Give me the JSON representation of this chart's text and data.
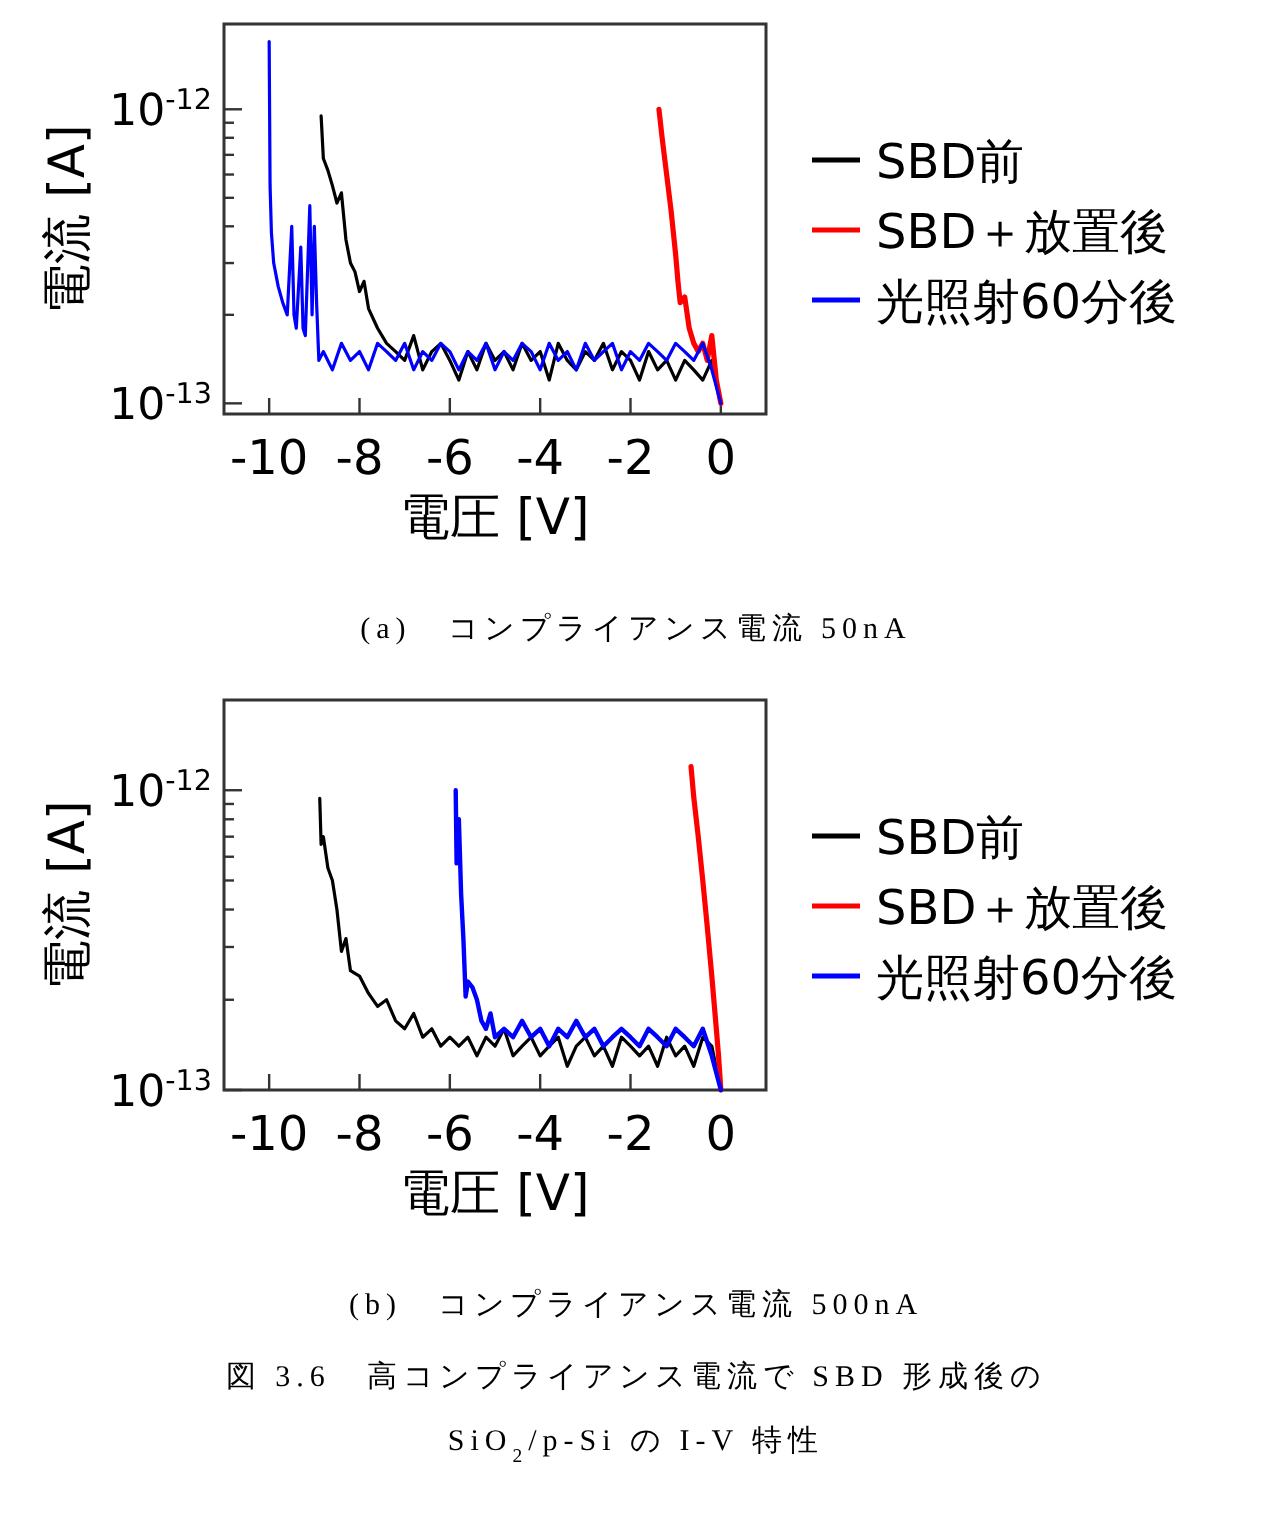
{
  "chart_data": [
    {
      "type": "line",
      "title": "(a)　コンプライアンス電流 50nA",
      "xlabel": "電圧 [V]",
      "ylabel": "電流 [A]",
      "log": "y",
      "legend": "right",
      "grid": false,
      "xlim": [
        -11,
        1
      ],
      "xticks": [
        {
          "value": -10,
          "label": "-10"
        },
        {
          "value": -8,
          "label": "-8"
        },
        {
          "value": -6,
          "label": "-6"
        },
        {
          "value": -4,
          "label": "-4"
        },
        {
          "value": -2,
          "label": "-2"
        },
        0
      ],
      "ylim": [
        9.2e-14,
        1.95e-12
      ],
      "yticks": [
        {
          "value": 1e-13,
          "label": "10$^{-13}$"
        },
        {
          "value": 2e-13,
          "label": null
        },
        {
          "value": 3e-13,
          "label": null
        },
        {
          "value": 4e-13,
          "label": null
        },
        {
          "value": 5e-13,
          "label": null
        },
        {
          "value": 6e-13,
          "label": null
        },
        {
          "value": 7e-13,
          "label": null
        },
        {
          "value": 8e-13,
          "label": null
        },
        {
          "value": 9e-13,
          "label": null
        },
        {
          "value": 1e-12,
          "label": "10$^{-12}$"
        }
      ],
      "series": [
        {
          "name": "SBD前",
          "color": "#000000",
          "x": [
            -8.85,
            -8.8,
            -8.7,
            -8.6,
            -8.5,
            -8.4,
            -8.3,
            -8.2,
            -8.1,
            -8.0,
            -7.9,
            -7.8,
            -7.6,
            -7.4,
            -7.2,
            -7.0,
            -6.8,
            -6.6,
            -6.4,
            -6.2,
            -6.0,
            -5.8,
            -5.6,
            -5.4,
            -5.2,
            -5.0,
            -4.8,
            -4.6,
            -4.4,
            -4.2,
            -4.0,
            -3.8,
            -3.6,
            -3.4,
            -3.2,
            -3.0,
            -2.8,
            -2.6,
            -2.4,
            -2.2,
            -2.0,
            -1.8,
            -1.6,
            -1.4,
            -1.2,
            -1.0,
            -0.8,
            -0.6,
            -0.4,
            -0.2,
            0
          ],
          "values": [
            9.5e-13,
            6.8e-13,
            6.2e-13,
            5.5e-13,
            4.8e-13,
            5.2e-13,
            3.6e-13,
            3e-13,
            2.8e-13,
            2.4e-13,
            2.6e-13,
            2.1e-13,
            1.8e-13,
            1.6e-13,
            1.5e-13,
            1.4e-13,
            1.7e-13,
            1.3e-13,
            1.5e-13,
            1.6e-13,
            1.4e-13,
            1.2e-13,
            1.5e-13,
            1.3e-13,
            1.6e-13,
            1.4e-13,
            1.5e-13,
            1.3e-13,
            1.6e-13,
            1.4e-13,
            1.5e-13,
            1.2e-13,
            1.6e-13,
            1.4e-13,
            1.3e-13,
            1.5e-13,
            1.4e-13,
            1.6e-13,
            1.3e-13,
            1.5e-13,
            1.4e-13,
            1.2e-13,
            1.5e-13,
            1.3e-13,
            1.4e-13,
            1.2e-13,
            1.4e-13,
            1.3e-13,
            1.2e-13,
            1.4e-13,
            1e-13
          ]
        },
        {
          "name": "SBD＋放置後",
          "color": "#ff0000",
          "x": [
            -1.37,
            -1.3,
            -1.2,
            -1.1,
            -1.0,
            -0.95,
            -0.9,
            -0.8,
            -0.7,
            -0.6,
            -0.5,
            -0.4,
            -0.3,
            -0.2,
            -0.1,
            0
          ],
          "values": [
            1e-12,
            8e-13,
            6e-13,
            4.5e-13,
            3.2e-13,
            2.6e-13,
            2.2e-13,
            2.3e-13,
            1.8e-13,
            1.6e-13,
            1.5e-13,
            1.6e-13,
            1.4e-13,
            1.7e-13,
            1.2e-13,
            1e-13
          ]
        },
        {
          "name": "光照射60分後",
          "color": "#0000ff",
          "x": [
            -10,
            -9.98,
            -9.95,
            -9.9,
            -9.8,
            -9.7,
            -9.6,
            -9.5,
            -9.45,
            -9.4,
            -9.3,
            -9.25,
            -9.2,
            -9.1,
            -9.05,
            -9.0,
            -8.95,
            -8.9,
            -8.8,
            -8.6,
            -8.4,
            -8.2,
            -8.0,
            -7.8,
            -7.6,
            -7.4,
            -7.2,
            -7.0,
            -6.8,
            -6.6,
            -6.4,
            -6.2,
            -6.0,
            -5.8,
            -5.6,
            -5.4,
            -5.2,
            -5.0,
            -4.8,
            -4.6,
            -4.4,
            -4.2,
            -4.0,
            -3.8,
            -3.6,
            -3.4,
            -3.2,
            -3.0,
            -2.8,
            -2.6,
            -2.4,
            -2.2,
            -2.0,
            -1.8,
            -1.6,
            -1.4,
            -1.2,
            -1.0,
            -0.8,
            -0.6,
            -0.4,
            -0.2,
            0
          ],
          "values": [
            1.7e-12,
            5.5e-13,
            3.8e-13,
            3e-13,
            2.5e-13,
            2.2e-13,
            2e-13,
            4e-13,
            2e-13,
            1.8e-13,
            3.4e-13,
            1.8e-13,
            1.7e-13,
            4.7e-13,
            2e-13,
            4e-13,
            2.2e-13,
            1.4e-13,
            1.5e-13,
            1.3e-13,
            1.6e-13,
            1.4e-13,
            1.5e-13,
            1.3e-13,
            1.6e-13,
            1.5e-13,
            1.4e-13,
            1.6e-13,
            1.3e-13,
            1.5e-13,
            1.4e-13,
            1.6e-13,
            1.5e-13,
            1.3e-13,
            1.5e-13,
            1.4e-13,
            1.6e-13,
            1.3e-13,
            1.5e-13,
            1.4e-13,
            1.6e-13,
            1.5e-13,
            1.3e-13,
            1.6e-13,
            1.4e-13,
            1.5e-13,
            1.3e-13,
            1.6e-13,
            1.4e-13,
            1.5e-13,
            1.6e-13,
            1.3e-13,
            1.5e-13,
            1.4e-13,
            1.6e-13,
            1.5e-13,
            1.4e-13,
            1.6e-13,
            1.5e-13,
            1.4e-13,
            1.6e-13,
            1.3e-13,
            1e-13
          ]
        }
      ]
    },
    {
      "type": "line",
      "title": "(b)　コンプライアンス電流 500nA",
      "xlabel": "電圧 [V]",
      "ylabel": "電流 [A]",
      "log": "y",
      "legend": "right",
      "grid": false,
      "annotations": [
        "図 3.6　高コンプライアンス電流で SBD 形成後の",
        "SiO$_{2}$/p-Si の I-V 特性"
      ],
      "xlim": [
        -11,
        1
      ],
      "xticks": [
        {
          "value": -10,
          "label": "-10"
        },
        {
          "value": -8,
          "label": "-8"
        },
        {
          "value": -6,
          "label": "-6"
        },
        {
          "value": -4,
          "label": "-4"
        },
        {
          "value": -2,
          "label": "-2"
        },
        0
      ],
      "ylim": [
        1e-13,
        2e-12
      ],
      "yticks": [
        {
          "value": 1e-13,
          "label": "10$^{-13}$"
        },
        {
          "value": 2e-13,
          "label": null
        },
        {
          "value": 3e-13,
          "label": null
        },
        {
          "value": 4e-13,
          "label": null
        },
        {
          "value": 5e-13,
          "label": null
        },
        {
          "value": 6e-13,
          "label": null
        },
        {
          "value": 7e-13,
          "label": null
        },
        {
          "value": 8e-13,
          "label": null
        },
        {
          "value": 9e-13,
          "label": null
        },
        {
          "value": 1e-12,
          "label": "10$^{-12}$"
        }
      ],
      "series": [
        {
          "name": "SBD前",
          "color": "#000000",
          "x": [
            -8.88,
            -8.85,
            -8.8,
            -8.7,
            -8.6,
            -8.5,
            -8.4,
            -8.3,
            -8.2,
            -8.0,
            -7.8,
            -7.6,
            -7.4,
            -7.2,
            -7.0,
            -6.8,
            -6.6,
            -6.4,
            -6.2,
            -6.0,
            -5.8,
            -5.6,
            -5.4,
            -5.2,
            -5.0,
            -4.8,
            -4.6,
            -4.4,
            -4.2,
            -4.0,
            -3.8,
            -3.6,
            -3.4,
            -3.2,
            -3.0,
            -2.8,
            -2.6,
            -2.4,
            -2.2,
            -2.0,
            -1.8,
            -1.6,
            -1.4,
            -1.2,
            -1.0,
            -0.8,
            -0.6,
            -0.4,
            -0.2,
            0
          ],
          "values": [
            9.4e-13,
            6.6e-13,
            7e-13,
            5.5e-13,
            5e-13,
            4e-13,
            2.9e-13,
            3.2e-13,
            2.5e-13,
            2.4e-13,
            2.1e-13,
            1.9e-13,
            2e-13,
            1.7e-13,
            1.6e-13,
            1.8e-13,
            1.5e-13,
            1.6e-13,
            1.4e-13,
            1.5e-13,
            1.4e-13,
            1.5e-13,
            1.3e-13,
            1.5e-13,
            1.4e-13,
            1.6e-13,
            1.3e-13,
            1.4e-13,
            1.5e-13,
            1.3e-13,
            1.4e-13,
            1.5e-13,
            1.2e-13,
            1.4e-13,
            1.5e-13,
            1.3e-13,
            1.4e-13,
            1.2e-13,
            1.5e-13,
            1.4e-13,
            1.3e-13,
            1.4e-13,
            1.2e-13,
            1.5e-13,
            1.3e-13,
            1.4e-13,
            1.2e-13,
            1.5e-13,
            1.4e-13,
            1e-13
          ]
        },
        {
          "name": "SBD＋放置後",
          "color": "#ff0000",
          "x": [
            -0.66,
            -0.6,
            -0.5,
            -0.4,
            -0.3,
            -0.2,
            -0.1,
            -0.05,
            0
          ],
          "values": [
            1.2e-12,
            9.5e-13,
            7e-13,
            5e-13,
            3.5e-13,
            2.4e-13,
            1.6e-13,
            1.3e-13,
            1e-13
          ]
        },
        {
          "name": "光照射60分後",
          "color": "#0000ff",
          "x": [
            -5.87,
            -5.85,
            -5.8,
            -5.75,
            -5.7,
            -5.65,
            -5.6,
            -5.5,
            -5.4,
            -5.3,
            -5.2,
            -5.1,
            -5.0,
            -4.8,
            -4.6,
            -4.4,
            -4.2,
            -4.0,
            -3.8,
            -3.6,
            -3.4,
            -3.2,
            -3.0,
            -2.8,
            -2.6,
            -2.4,
            -2.2,
            -2.0,
            -1.8,
            -1.6,
            -1.4,
            -1.2,
            -1.0,
            -0.8,
            -0.6,
            -0.4,
            -0.2,
            0
          ],
          "values": [
            1e-12,
            5.7e-13,
            8e-13,
            4.5e-13,
            3.2e-13,
            2.05e-13,
            2.3e-13,
            2.2e-13,
            2e-13,
            1.7e-13,
            1.6e-13,
            1.8e-13,
            1.5e-13,
            1.6e-13,
            1.5e-13,
            1.7e-13,
            1.5e-13,
            1.6e-13,
            1.4e-13,
            1.6e-13,
            1.5e-13,
            1.7e-13,
            1.5e-13,
            1.6e-13,
            1.4e-13,
            1.5e-13,
            1.6e-13,
            1.5e-13,
            1.4e-13,
            1.6e-13,
            1.5e-13,
            1.4e-13,
            1.6e-13,
            1.5e-13,
            1.4e-13,
            1.6e-13,
            1.3e-13,
            1e-13
          ]
        }
      ]
    }
  ]
}
